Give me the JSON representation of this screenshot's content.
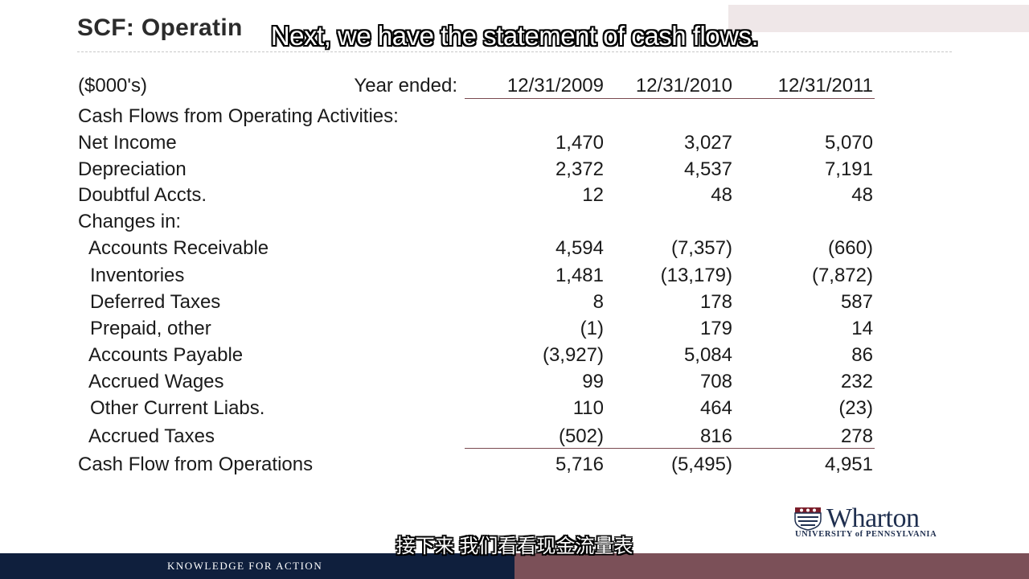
{
  "slide": {
    "title": "SCF: Operatin",
    "subtitle_en": "Next, we have the statement of cash flows.",
    "subtitle_zh": "接下来 我们看看现金流量表"
  },
  "table": {
    "units_label": "($000's)",
    "year_label": "Year ended:",
    "years": [
      "12/31/2009",
      "12/31/2010",
      "12/31/2011"
    ],
    "section_heading": "Cash Flows from Operating Activities:",
    "rows": [
      {
        "label": "Net Income",
        "values": [
          "1,470",
          "3,027",
          "5,070"
        ]
      },
      {
        "label": "Depreciation",
        "values": [
          "2,372",
          "4,537",
          "7,191"
        ]
      },
      {
        "label": "Doubtful Accts.",
        "values": [
          "12",
          "48",
          "48"
        ]
      },
      {
        "label": "Changes in:",
        "values": [
          "",
          "",
          ""
        ]
      },
      {
        "label": "Accounts Receivable",
        "values": [
          "4,594",
          "(7,357)",
          "(660)"
        ]
      },
      {
        "label": "Inventories",
        "values": [
          "1,481",
          "(13,179)",
          "(7,872)"
        ]
      },
      {
        "label": "Deferred Taxes",
        "values": [
          "8",
          "178",
          "587"
        ]
      },
      {
        "label": "Prepaid, other",
        "values": [
          "(1)",
          "179",
          "14"
        ]
      },
      {
        "label": "Accounts Payable",
        "values": [
          "(3,927)",
          "5,084",
          "86"
        ]
      },
      {
        "label": "Accrued Wages",
        "values": [
          "99",
          "708",
          "232"
        ]
      },
      {
        "label": "Other Current Liabs.",
        "values": [
          "110",
          "464",
          "(23)"
        ]
      },
      {
        "label": "Accrued Taxes",
        "values": [
          "(502)",
          "816",
          "278"
        ]
      }
    ],
    "total": {
      "label": "Cash Flow from Operations",
      "values": [
        "5,716",
        "(5,495)",
        "4,951"
      ]
    }
  },
  "logo": {
    "name": "Wharton",
    "sub": "UNIVERSITY of PENNSYLVANIA"
  },
  "footer": {
    "tagline": "KNOWLEDGE FOR ACTION"
  },
  "colors": {
    "footer_navy": "#0f1f3d",
    "footer_maroon": "#7b5058",
    "rule": "#7a4a50",
    "text": "#1a1a1a"
  }
}
